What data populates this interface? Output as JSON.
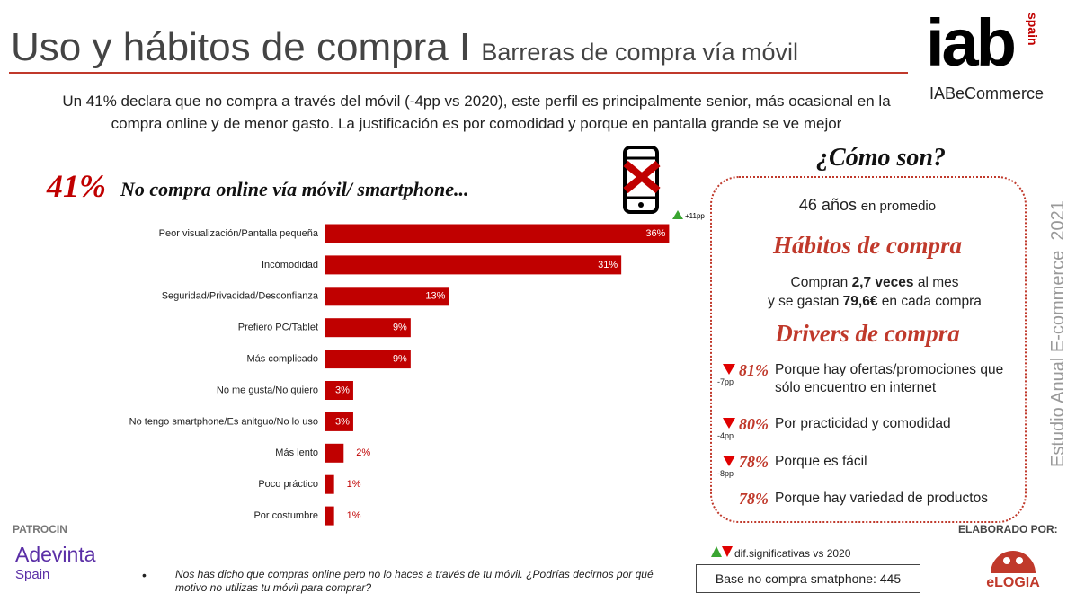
{
  "header": {
    "title": "Uso y hábitos de compra I",
    "subtitle": "Barreras de compra vía móvil",
    "logo": "iab",
    "logo_tag": "spain",
    "brand": "IABeCommerce"
  },
  "intro": "Un 41% declara que no compra a través del móvil (-4pp vs 2020), este perfil es principalmente senior, más ocasional en la compra online y de menor gasto. La justificación es por comodidad y porque en pantalla grande se ve mejor",
  "chart_data": {
    "type": "bar",
    "orientation": "horizontal",
    "headline": "41%",
    "title": "No compra online vía móvil/ smartphone...",
    "annotation": "+11pp",
    "color": "#c00000",
    "categories": [
      "Peor visualización/Pantalla pequeña",
      "Incómodidad",
      "Seguridad/Privacidad/Desconfianza",
      "Prefiero PC/Tablet",
      "Más complicado",
      "No me gusta/No quiero",
      "No tengo smartphone/Es anitguo/No lo uso",
      "Más lento",
      "Poco práctico",
      "Por costumbre"
    ],
    "values": [
      36,
      31,
      13,
      9,
      9,
      3,
      3,
      2,
      1,
      1
    ],
    "value_labels": [
      "36%",
      "31%",
      "13%",
      "9%",
      "9%",
      "3%",
      "3%",
      "2%",
      "1%",
      "1%"
    ]
  },
  "profile": {
    "heading": "¿Cómo son?",
    "age": "46 años",
    "age_note": "en promedio",
    "habits_title": "Hábitos de compra",
    "habits_pre": "Compran",
    "frequency": "2,7 veces",
    "habits_mid": "al mes",
    "habits_pre2": "y se gastan",
    "spend": "79,6€",
    "habits_post": "en cada compra",
    "drivers_title": "Drivers de compra",
    "drivers": [
      {
        "pct": "81%",
        "change": "-7pp",
        "text": "Porque hay ofertas/promociones que sólo encuentro en internet"
      },
      {
        "pct": "80%",
        "change": "-4pp",
        "text": "Por practicidad y comodidad"
      },
      {
        "pct": "78%",
        "change": "-8pp",
        "text": "Porque es fácil"
      },
      {
        "pct": "78%",
        "text": "Porque hay variedad de productos"
      }
    ]
  },
  "side_label": "Estudio Anual E-commerce  2021",
  "footer": {
    "sponsor_label": "PATROCIN",
    "sponsor": "Adevinta",
    "sponsor_sub": "Spain",
    "note": "Nos has dicho que compras online pero no lo haces a través de tu móvil. ¿Podrías decirnos por qué motivo no utilizas tu móvil para comprar?",
    "legend": "dif.significativas vs 2020",
    "base": "Base no compra smatphone: 445",
    "made_by": "ELABORADO POR:",
    "maker": "eLOGIA"
  }
}
